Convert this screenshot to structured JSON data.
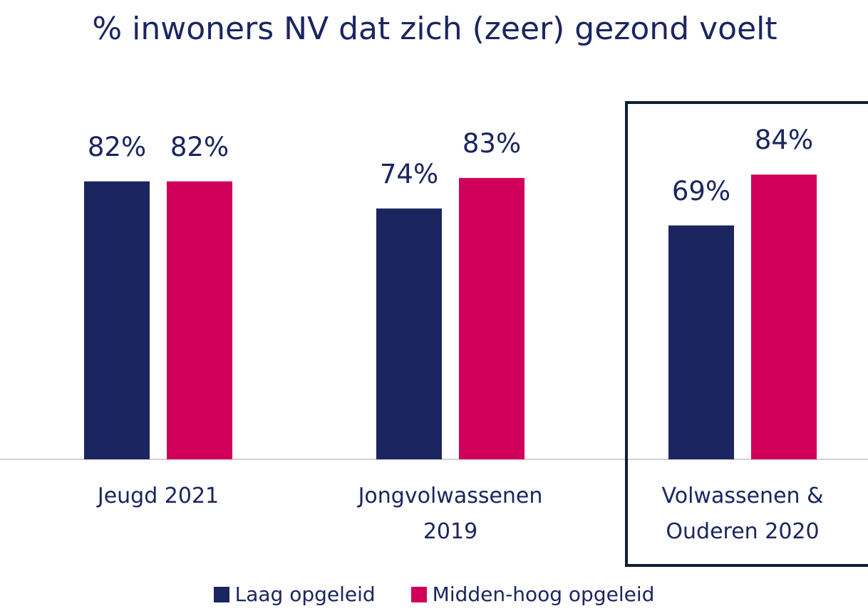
{
  "chart_data": {
    "type": "bar",
    "title": "% inwoners NV dat zich (zeer) gezond voelt",
    "categories": [
      "Jeugd 2021",
      "Jongvolwassenen 2019",
      "Volwassenen & Ouderen 2020"
    ],
    "series": [
      {
        "name": "Laag opgeleid",
        "color": "#1b2560",
        "values": [
          82,
          74,
          69
        ],
        "value_labels": [
          "82%",
          "74%",
          "69%"
        ]
      },
      {
        "name": "Midden-hoog opgeleid",
        "color": "#d1005a",
        "values": [
          82,
          83,
          84
        ],
        "value_labels": [
          "82%",
          "83%",
          "84%"
        ]
      }
    ],
    "ylim": [
      0,
      100
    ],
    "legend": "bottom"
  }
}
